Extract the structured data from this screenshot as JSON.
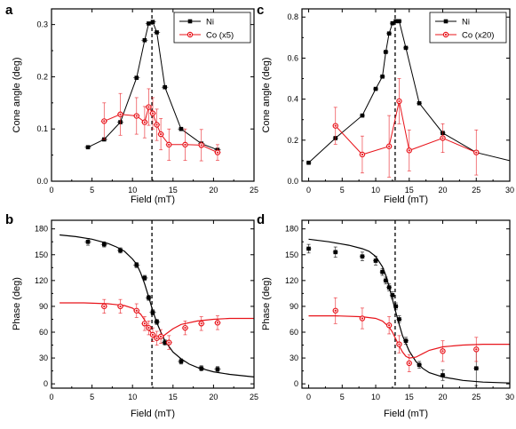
{
  "chart_data": [
    {
      "panel": "a",
      "type": "line",
      "xlabel": "Field (mT)",
      "ylabel": "Cone angle (deg)",
      "xlim": [
        0,
        25
      ],
      "ylim": [
        0,
        0.33
      ],
      "xticks": [
        0,
        5,
        10,
        15,
        20,
        25
      ],
      "yticks": [
        0.0,
        0.1,
        0.2,
        0.3
      ],
      "ytick_labels": [
        "0.0",
        "0.1",
        "0.2",
        "0.3"
      ],
      "vline": 12.4,
      "legend": "top-right",
      "series": [
        {
          "name": "Ni",
          "color": "#000000",
          "marker": "square",
          "connect": "line",
          "x": [
            4.5,
            6.5,
            8.5,
            10.5,
            11.5,
            12,
            12.5,
            13,
            14,
            16,
            18.5,
            20.5
          ],
          "y": [
            0.065,
            0.08,
            0.113,
            0.198,
            0.27,
            0.302,
            0.305,
            0.285,
            0.18,
            0.1,
            0.072,
            0.06
          ],
          "xerr": [
            0.4,
            0.4,
            0.4,
            0.4,
            0.4,
            0.4,
            0.4,
            0.4,
            0.4,
            0.4,
            0.4,
            0.4
          ],
          "yerr": [
            0,
            0,
            0,
            0,
            0,
            0,
            0,
            0,
            0,
            0,
            0,
            0
          ]
        },
        {
          "name": "Co (x5)",
          "color": "#e8141b",
          "marker": "circle",
          "connect": "line",
          "x": [
            6.5,
            8.5,
            10.5,
            11.5,
            12,
            12.5,
            13,
            13.5,
            14.5,
            16.5,
            18.5,
            20.5
          ],
          "y": [
            0.115,
            0.128,
            0.125,
            0.113,
            0.142,
            0.13,
            0.108,
            0.09,
            0.07,
            0.07,
            0.069,
            0.055
          ],
          "xerr": [
            0.4,
            0.4,
            0.4,
            0.4,
            0.4,
            0.4,
            0.4,
            0.4,
            0.4,
            0.4,
            0.4,
            0.4
          ],
          "yerr": [
            0.035,
            0.04,
            0.035,
            0.03,
            0.035,
            0.03,
            0.03,
            0.03,
            0.03,
            0.03,
            0.03,
            0.015
          ]
        }
      ]
    },
    {
      "panel": "b",
      "type": "scatter",
      "xlabel": "Field (mT)",
      "ylabel": "Phase (deg)",
      "xlim": [
        0,
        25
      ],
      "ylim": [
        -5,
        190
      ],
      "xticks": [
        0,
        5,
        10,
        15,
        20,
        25
      ],
      "yticks": [
        0,
        30,
        60,
        90,
        120,
        150,
        180
      ],
      "vline": 12.4,
      "series": [
        {
          "name": "",
          "color": "#000000",
          "marker": "square",
          "x": [
            4.5,
            6.5,
            8.5,
            10.5,
            11.5,
            12,
            12.5,
            13,
            14,
            16,
            18.5,
            20.5
          ],
          "y": [
            165,
            162,
            155,
            138,
            123,
            100,
            83,
            72,
            48,
            26,
            18,
            17
          ],
          "xerr": [
            0.4,
            0.4,
            0.4,
            0.4,
            0.4,
            0.4,
            0.4,
            0.4,
            0.4,
            0.4,
            0.4,
            0.4
          ],
          "yerr": [
            4,
            3,
            3,
            3,
            3,
            3,
            3,
            3,
            3,
            3,
            3,
            3
          ],
          "fit": {
            "x": [
              1,
              3,
              5,
              7,
              8,
              9,
              10,
              10.5,
              11,
              11.5,
              12,
              12.5,
              13,
              13.5,
              14,
              15,
              16,
              17,
              18,
              20,
              22,
              25
            ],
            "y": [
              173,
              171,
              168,
              163,
              159,
              154,
              145,
              139,
              129,
              116,
              101,
              85,
              71,
              60,
              50,
              37,
              29,
              23,
              19,
              14,
              11,
              8
            ]
          }
        },
        {
          "name": "",
          "color": "#e8141b",
          "marker": "circle",
          "x": [
            6.5,
            8.5,
            10.5,
            11.5,
            12,
            12.5,
            13,
            13.5,
            14.5,
            16.5,
            18.5,
            20.5
          ],
          "y": [
            90,
            90,
            85,
            70,
            65,
            57,
            53,
            55,
            48,
            65,
            70,
            71
          ],
          "xerr": [
            0.4,
            0.4,
            0.4,
            0.4,
            0.4,
            0.4,
            0.4,
            0.4,
            0.4,
            0.4,
            0.4,
            0.4
          ],
          "yerr": [
            8,
            8,
            8,
            8,
            8,
            8,
            8,
            8,
            8,
            8,
            8,
            8
          ],
          "fit": {
            "x": [
              1,
              4,
              7,
              9,
              10,
              11,
              11.5,
              12,
              12.5,
              13,
              13.5,
              14,
              15,
              16,
              18,
              20,
              22,
              25
            ],
            "y": [
              94,
              94,
              93,
              91,
              88,
              81,
              74,
              64,
              56,
              52,
              53,
              57,
              64,
              69,
              73,
              75,
              76,
              76
            ]
          }
        }
      ]
    },
    {
      "panel": "c",
      "type": "line",
      "xlabel": "Field (mT)",
      "ylabel": "Cone angle (deg)",
      "xlim": [
        -1,
        30
      ],
      "ylim": [
        0,
        0.84
      ],
      "xticks": [
        0,
        5,
        10,
        15,
        20,
        25,
        30
      ],
      "yticks": [
        0.0,
        0.2,
        0.4,
        0.6,
        0.8
      ],
      "ytick_labels": [
        "0.0",
        "0.2",
        "0.4",
        "0.6",
        "0.8"
      ],
      "vline": 12.9,
      "legend": "top-right",
      "series": [
        {
          "name": "Ni",
          "color": "#000000",
          "marker": "square",
          "connect": "line",
          "x": [
            0,
            4,
            8,
            10,
            11,
            11.5,
            12,
            12.5,
            13,
            13.5,
            14.5,
            16.5,
            20,
            25
          ],
          "y": [
            0.09,
            0.21,
            0.32,
            0.45,
            0.51,
            0.63,
            0.72,
            0.77,
            0.78,
            0.78,
            0.65,
            0.38,
            0.235,
            0.14
          ],
          "xerr": [
            0.4,
            0.4,
            0.4,
            0.4,
            0.4,
            0.4,
            0.4,
            0.4,
            0.4,
            0.4,
            0.4,
            0.4,
            0.4,
            0.4
          ],
          "yerr": [
            0,
            0,
            0,
            0,
            0,
            0,
            0,
            0,
            0,
            0,
            0,
            0,
            0,
            0
          ],
          "tail": {
            "x": [
              25,
              30
            ],
            "y": [
              0.14,
              0.1
            ]
          }
        },
        {
          "name": "Co (x20)",
          "color": "#e8141b",
          "marker": "circle",
          "connect": "line",
          "x": [
            4,
            8,
            12,
            13.5,
            15,
            20,
            25
          ],
          "y": [
            0.27,
            0.13,
            0.17,
            0.39,
            0.15,
            0.21,
            0.14
          ],
          "xerr": [
            0.4,
            0.4,
            0.4,
            0.4,
            0.4,
            0.4,
            0.4
          ],
          "yerr": [
            0.09,
            0.09,
            0.15,
            0.11,
            0.1,
            0.07,
            0.11
          ]
        }
      ]
    },
    {
      "panel": "d",
      "type": "scatter",
      "xlabel": "Field (mT)",
      "ylabel": "Phase (deg)",
      "xlim": [
        -1,
        30
      ],
      "ylim": [
        -5,
        190
      ],
      "xticks": [
        0,
        5,
        10,
        15,
        20,
        25,
        30
      ],
      "yticks": [
        0,
        30,
        60,
        90,
        120,
        150,
        180
      ],
      "vline": 12.9,
      "series": [
        {
          "name": "",
          "color": "#000000",
          "marker": "square",
          "x": [
            0,
            4,
            8,
            10,
            11,
            11.5,
            12,
            12.5,
            13,
            13.5,
            14.5,
            16.5,
            20,
            25
          ],
          "y": [
            157,
            153,
            148,
            143,
            130,
            120,
            112,
            103,
            90,
            75,
            50,
            22,
            10,
            18
          ],
          "xerr": [
            0.4,
            0.4,
            0.4,
            0.4,
            0.4,
            0.4,
            0.4,
            0.4,
            0.4,
            0.4,
            0.4,
            0.4,
            0.4,
            0.4
          ],
          "yerr": [
            5,
            6,
            5,
            5,
            4,
            4,
            4,
            4,
            4,
            4,
            4,
            4,
            6,
            20
          ],
          "fit": {
            "x": [
              0,
              3,
              6,
              8,
              9,
              10,
              11,
              11.5,
              12,
              12.5,
              13,
              13.5,
              14,
              15,
              16,
              17,
              18,
              20,
              23,
              26,
              30
            ],
            "y": [
              168,
              165,
              161,
              157,
              154,
              148,
              136,
              126,
              113,
              98,
              83,
              69,
              56,
              38,
              26,
              18,
              13,
              8,
              4,
              2,
              1
            ]
          }
        },
        {
          "name": "",
          "color": "#e8141b",
          "marker": "circle",
          "x": [
            4,
            8,
            12,
            13.5,
            15,
            20,
            25
          ],
          "y": [
            85,
            76,
            68,
            46,
            24,
            38,
            40
          ],
          "xerr": [
            0.4,
            0.4,
            0.4,
            0.4,
            0.4,
            0.4,
            0.4
          ],
          "yerr": [
            15,
            12,
            10,
            10,
            10,
            12,
            14
          ],
          "fit": {
            "x": [
              0,
              4,
              8,
              10,
              11,
              12,
              12.5,
              13,
              13.5,
              14,
              14.5,
              15,
              16,
              17,
              18,
              20,
              23,
              26,
              30
            ],
            "y": [
              79,
              79,
              78,
              76,
              73,
              66,
              60,
              52,
              44,
              37,
              32,
              30,
              31,
              35,
              39,
              43,
              45,
              46,
              46
            ]
          }
        }
      ]
    }
  ]
}
